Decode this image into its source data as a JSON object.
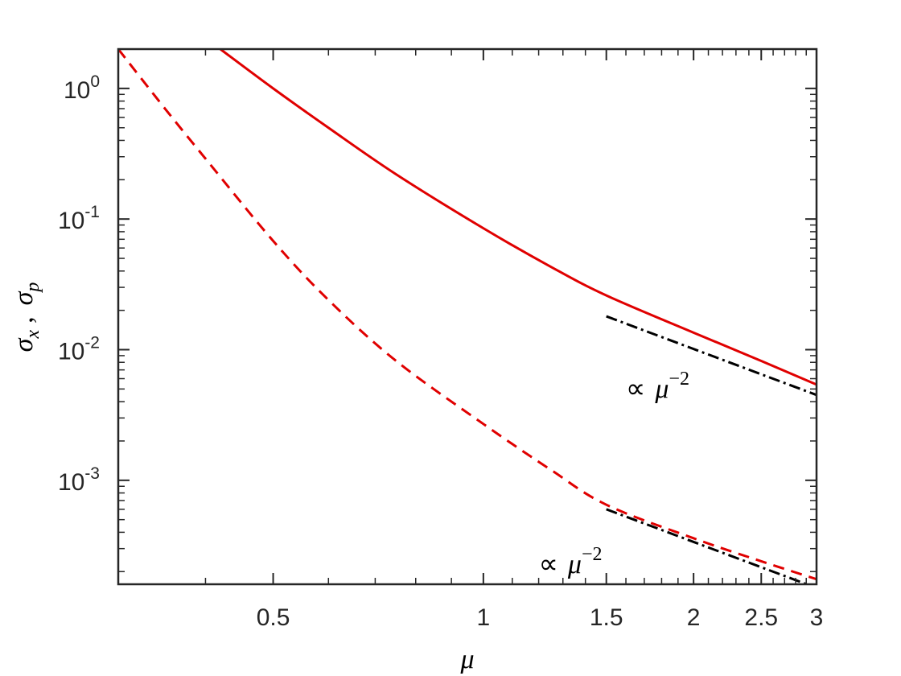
{
  "chart_data": {
    "type": "line",
    "title": "",
    "xlabel": "μ",
    "ylabel": {
      "sigma": "σ",
      "sub1": "x",
      "sep": ",",
      "sub2": "p"
    },
    "xscale": "log",
    "yscale": "log",
    "xlim": [
      0.3,
      3
    ],
    "ylim": [
      0.00016,
      2
    ],
    "grid": false,
    "legend": "none",
    "x_ticks": [
      {
        "value": 0.5,
        "label": "0.5"
      },
      {
        "value": 1,
        "label": "1"
      },
      {
        "value": 1.5,
        "label": "1.5"
      },
      {
        "value": 2,
        "label": "2"
      },
      {
        "value": 2.5,
        "label": "2.5"
      },
      {
        "value": 3,
        "label": "3"
      }
    ],
    "y_ticks": [
      {
        "value": 0.001,
        "base": "10",
        "exp": "-3"
      },
      {
        "value": 0.01,
        "base": "10",
        "exp": "-2"
      },
      {
        "value": 0.1,
        "base": "10",
        "exp": "-1"
      },
      {
        "value": 1,
        "base": "10",
        "exp": "0"
      }
    ],
    "series": [
      {
        "style": "solid",
        "color": "#e00000",
        "x": [
          0.42,
          0.5,
          0.6,
          0.75,
          1.0,
          1.25,
          1.5,
          2.0,
          2.5,
          3.0
        ],
        "y": [
          2.0,
          1.0,
          0.5,
          0.22,
          0.085,
          0.043,
          0.026,
          0.0135,
          0.0082,
          0.0054
        ]
      },
      {
        "style": "dashed",
        "color": "#e00000",
        "x": [
          0.3,
          0.35,
          0.4,
          0.5,
          0.6,
          0.75,
          1.0,
          1.25,
          1.5,
          2.0,
          2.5,
          3.0
        ],
        "y": [
          2.0,
          0.7,
          0.29,
          0.068,
          0.024,
          0.0082,
          0.0027,
          0.0012,
          0.00065,
          0.00036,
          0.00024,
          0.000175
        ]
      },
      {
        "style": "dashdot",
        "color": "#000000",
        "x": [
          1.5,
          3.0
        ],
        "y": [
          0.018,
          0.0045
        ]
      },
      {
        "style": "dashdot",
        "color": "#000000",
        "x": [
          1.5,
          3.0
        ],
        "y": [
          0.0006,
          0.00015
        ]
      }
    ],
    "annotations": [
      {
        "prefix": "∝",
        "var": "μ",
        "exp": "−2",
        "x": 1.6,
        "y": 0.0043
      },
      {
        "prefix": "∝",
        "var": "μ",
        "exp": "−2",
        "x": 1.2,
        "y": 0.000195
      }
    ]
  }
}
